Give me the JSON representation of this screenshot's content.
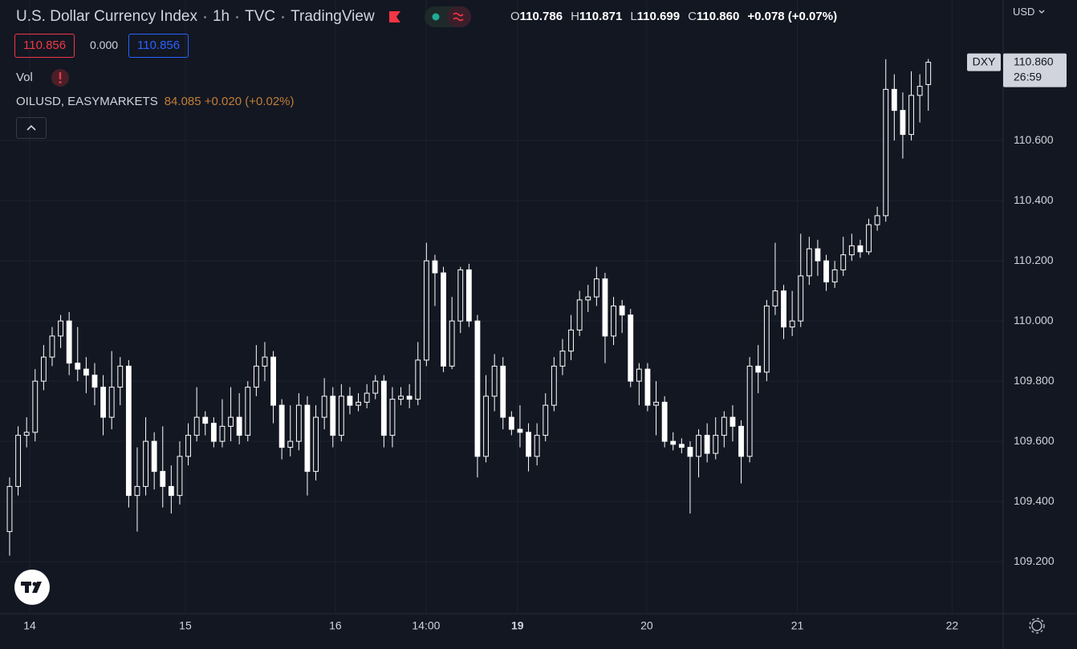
{
  "header": {
    "title_parts": [
      "U.S. Dollar Currency Index",
      "1h",
      "TVC",
      "TradingView"
    ],
    "ohlc": [
      {
        "key": "O",
        "value": "110.786"
      },
      {
        "key": "H",
        "value": "110.871"
      },
      {
        "key": "L",
        "value": "110.699"
      },
      {
        "key": "C",
        "value": "110.860"
      }
    ],
    "change": "+0.078 (+0.07%)",
    "bid": "110.856",
    "spread": "0.000",
    "ask": "110.856",
    "volume_label": "Vol",
    "compare_symbol": "OILUSD, EASYMARKETS",
    "compare_quote": "84.085 +0.020 (+0.02%)",
    "currency": "USD",
    "symbol_tag": "DXY",
    "countdown": "26:59"
  },
  "chart_data": {
    "type": "candlestick",
    "color": "#ffffff",
    "hollow_up": true,
    "grid": true,
    "x": [
      0,
      1,
      2,
      3,
      4,
      5,
      6,
      7,
      8,
      9,
      10,
      11,
      12,
      13,
      14,
      15,
      16,
      17,
      18,
      19,
      20,
      21,
      22,
      23,
      24,
      25,
      26,
      27,
      28,
      29,
      30,
      31,
      32,
      33,
      34,
      35,
      36,
      37,
      38,
      39,
      40,
      41,
      42,
      43,
      44,
      45,
      46,
      47,
      48,
      49,
      50,
      51,
      52,
      53,
      54,
      55,
      56,
      57,
      58,
      59,
      60,
      61,
      62,
      63,
      64,
      65,
      66,
      67,
      68,
      69,
      70,
      71,
      72,
      73,
      74,
      75,
      76,
      77,
      78,
      79,
      80,
      81,
      82,
      83,
      84,
      85,
      86,
      87,
      88,
      89,
      90,
      91,
      92,
      93,
      94,
      95,
      96,
      97,
      98,
      99,
      100,
      101,
      102,
      103,
      104,
      105,
      106,
      107,
      108
    ],
    "open": [
      109.3,
      109.45,
      109.62,
      109.63,
      109.8,
      109.88,
      109.95,
      110.0,
      109.86,
      109.84,
      109.82,
      109.78,
      109.68,
      109.78,
      109.85,
      109.42,
      109.45,
      109.6,
      109.5,
      109.45,
      109.42,
      109.55,
      109.62,
      109.68,
      109.66,
      109.6,
      109.65,
      109.68,
      109.62,
      109.78,
      109.85,
      109.88,
      109.72,
      109.58,
      109.6,
      109.72,
      109.5,
      109.68,
      109.75,
      109.62,
      109.75,
      109.72,
      109.73,
      109.76,
      109.8,
      109.62,
      109.74,
      109.75,
      109.74,
      109.87,
      110.2,
      110.16,
      109.85,
      110.0,
      110.17,
      110.0,
      109.55,
      109.75,
      109.85,
      109.68,
      109.64,
      109.63,
      109.55,
      109.62,
      109.72,
      109.85,
      109.9,
      109.97,
      110.07,
      110.08,
      110.14,
      109.95,
      110.05,
      110.02,
      109.8,
      109.84,
      109.72,
      109.73,
      109.6,
      109.59,
      109.58,
      109.55,
      109.62,
      109.56,
      109.62,
      109.68,
      109.65,
      109.55,
      109.85,
      109.83,
      110.05,
      110.1,
      109.98,
      110.0,
      110.15,
      110.24,
      110.2,
      110.13,
      110.17,
      110.22,
      110.25,
      110.23,
      110.32,
      110.35,
      110.77,
      110.7,
      110.62,
      110.75,
      110.786
    ],
    "high": [
      109.48,
      109.65,
      109.68,
      109.84,
      109.92,
      109.98,
      110.02,
      110.03,
      109.98,
      109.88,
      109.86,
      109.82,
      109.9,
      109.88,
      109.87,
      109.58,
      109.68,
      109.63,
      109.65,
      109.52,
      109.6,
      109.66,
      109.78,
      109.7,
      109.68,
      109.74,
      109.78,
      109.76,
      109.8,
      109.92,
      109.93,
      109.9,
      109.74,
      109.72,
      109.76,
      109.75,
      109.72,
      109.81,
      109.78,
      109.79,
      109.78,
      109.76,
      109.79,
      109.82,
      109.82,
      109.78,
      109.78,
      109.79,
      109.93,
      110.26,
      110.22,
      110.18,
      110.08,
      110.18,
      110.19,
      110.02,
      109.82,
      109.89,
      109.88,
      109.7,
      109.72,
      109.66,
      109.66,
      109.76,
      109.88,
      109.94,
      110.02,
      110.1,
      110.12,
      110.18,
      110.16,
      110.08,
      110.07,
      110.04,
      109.86,
      109.86,
      109.8,
      109.75,
      109.63,
      109.61,
      109.6,
      109.64,
      109.66,
      109.68,
      109.7,
      109.72,
      109.67,
      109.88,
      109.92,
      110.07,
      110.26,
      110.12,
      110.1,
      110.29,
      110.28,
      110.27,
      110.22,
      110.2,
      110.28,
      110.29,
      110.27,
      110.34,
      110.38,
      110.87,
      110.82,
      110.76,
      110.83,
      110.82,
      110.871
    ],
    "low": [
      109.22,
      109.42,
      109.58,
      109.6,
      109.77,
      109.85,
      109.91,
      109.82,
      109.8,
      109.76,
      109.72,
      109.62,
      109.64,
      109.72,
      109.38,
      109.3,
      109.42,
      109.44,
      109.38,
      109.36,
      109.39,
      109.52,
      109.6,
      109.62,
      109.58,
      109.58,
      109.6,
      109.59,
      109.6,
      109.75,
      109.8,
      109.66,
      109.54,
      109.55,
      109.57,
      109.42,
      109.47,
      109.64,
      109.58,
      109.6,
      109.69,
      109.7,
      109.71,
      109.74,
      109.58,
      109.58,
      109.72,
      109.71,
      109.72,
      109.85,
      110.05,
      109.83,
      109.84,
      109.96,
      109.98,
      109.48,
      109.53,
      109.7,
      109.64,
      109.62,
      109.58,
      109.5,
      109.52,
      109.6,
      109.7,
      109.82,
      109.87,
      109.95,
      110.03,
      110.05,
      109.86,
      109.92,
      109.96,
      109.78,
      109.72,
      109.7,
      109.62,
      109.58,
      109.57,
      109.56,
      109.36,
      109.48,
      109.53,
      109.54,
      109.58,
      109.6,
      109.46,
      109.53,
      109.76,
      109.8,
      110.02,
      109.94,
      109.95,
      109.98,
      110.12,
      110.15,
      110.1,
      110.11,
      110.15,
      110.2,
      110.21,
      110.22,
      110.3,
      110.33,
      110.6,
      110.54,
      110.6,
      110.66,
      110.699
    ],
    "close": [
      109.45,
      109.62,
      109.63,
      109.8,
      109.88,
      109.95,
      110.0,
      109.86,
      109.84,
      109.82,
      109.78,
      109.68,
      109.78,
      109.85,
      109.42,
      109.45,
      109.6,
      109.5,
      109.45,
      109.42,
      109.55,
      109.62,
      109.68,
      109.66,
      109.6,
      109.65,
      109.68,
      109.62,
      109.78,
      109.85,
      109.88,
      109.72,
      109.58,
      109.6,
      109.72,
      109.5,
      109.68,
      109.75,
      109.62,
      109.75,
      109.72,
      109.73,
      109.76,
      109.8,
      109.62,
      109.74,
      109.75,
      109.74,
      109.87,
      110.2,
      110.16,
      109.85,
      110.0,
      110.17,
      110.0,
      109.55,
      109.75,
      109.85,
      109.68,
      109.64,
      109.63,
      109.55,
      109.62,
      109.72,
      109.85,
      109.9,
      109.97,
      110.07,
      110.08,
      110.14,
      109.95,
      110.05,
      110.02,
      109.8,
      109.84,
      109.72,
      109.73,
      109.6,
      109.59,
      109.58,
      109.55,
      109.62,
      109.56,
      109.62,
      109.68,
      109.65,
      109.55,
      109.85,
      109.83,
      110.05,
      110.1,
      109.98,
      110.0,
      110.15,
      110.24,
      110.2,
      110.13,
      110.17,
      110.22,
      110.25,
      110.23,
      110.32,
      110.35,
      110.77,
      110.7,
      110.62,
      110.75,
      110.78,
      110.86
    ],
    "last_value_label": "110.860",
    "xlim": [
      -1.13,
      116.8
    ],
    "xticks": [
      {
        "value": 2.36,
        "label": "14"
      },
      {
        "value": 20.66,
        "label": "15"
      },
      {
        "value": 38.3,
        "label": "16"
      },
      {
        "value": 48.96,
        "label": "14:00"
      },
      {
        "value": 59.7,
        "label": "19",
        "bold": true
      },
      {
        "value": 74.9,
        "label": "20"
      },
      {
        "value": 92.6,
        "label": "21"
      },
      {
        "value": 110.8,
        "label": "22"
      }
    ],
    "ylim": [
      109.027,
      111.067
    ],
    "yticks": [
      {
        "value": 109.2,
        "label": "109.200"
      },
      {
        "value": 109.4,
        "label": "109.400"
      },
      {
        "value": 109.6,
        "label": "109.600"
      },
      {
        "value": 109.8,
        "label": "109.800"
      },
      {
        "value": 110.0,
        "label": "110.000"
      },
      {
        "value": 110.2,
        "label": "110.200"
      },
      {
        "value": 110.4,
        "label": "110.400"
      },
      {
        "value": 110.6,
        "label": "110.600"
      }
    ]
  }
}
